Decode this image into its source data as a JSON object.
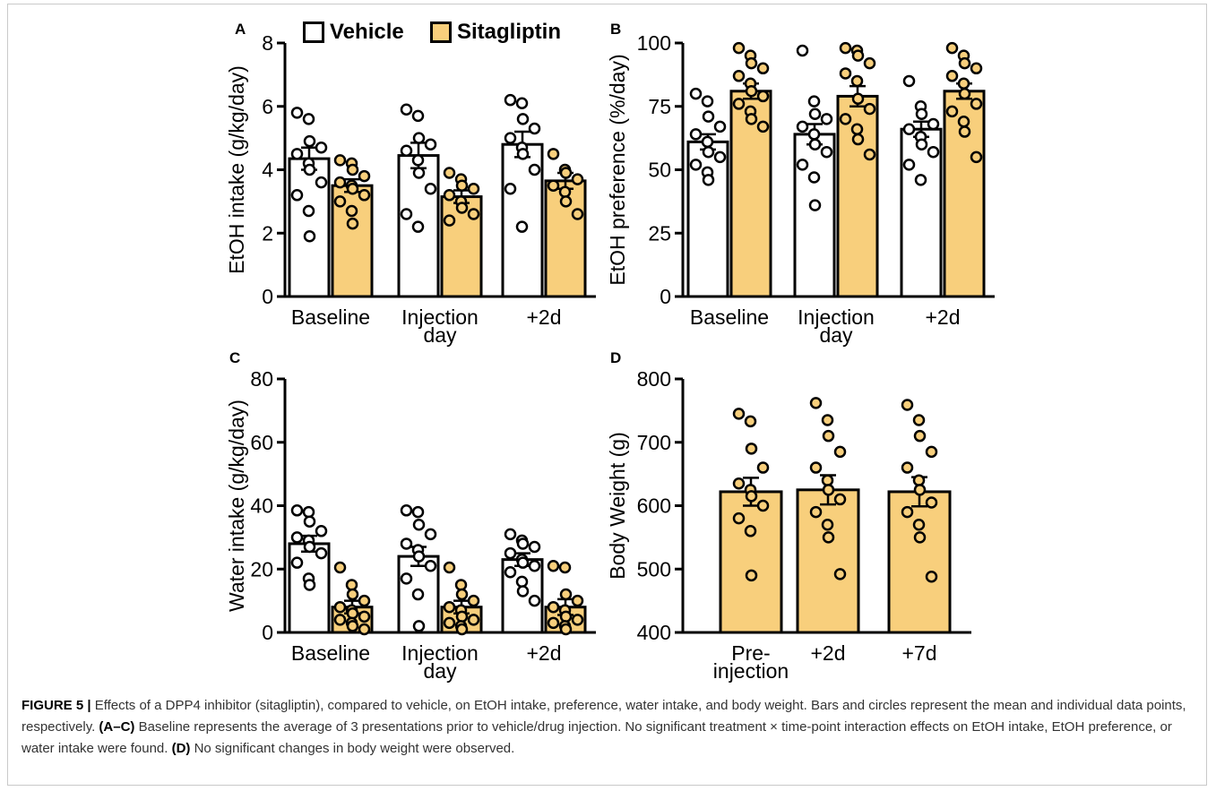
{
  "legend": [
    {
      "name": "Vehicle",
      "color": "#ffffff"
    },
    {
      "name": "Sitagliptin",
      "color": "#f8cf7c"
    }
  ],
  "caption": {
    "fig_label": "FIGURE 5 |",
    "sentence1": " Effects of a DPP4 inhibitor (sitagliptin), compared to vehicle, on EtOH intake, preference, water intake, and body weight. Bars and circles represent the mean and individual data points, respectively. ",
    "abc_label": "(A–C)",
    "sentence2": " Baseline represents the average of 3 presentations prior to vehicle/drug injection. No significant treatment × time-point interaction effects on EtOH intake, EtOH preference, or water intake were found. ",
    "d_label": "(D)",
    "sentence3": " No significant changes in body weight were observed."
  },
  "chart_data": [
    {
      "panel": "A",
      "type": "bar",
      "ylabel": "EtOH intake (g/kg/day)",
      "ylim": [
        0,
        8
      ],
      "yticks": [
        0,
        2,
        4,
        6,
        8
      ],
      "categories": [
        [
          "Baseline"
        ],
        [
          "Injection",
          "day"
        ],
        [
          "+2d"
        ]
      ],
      "series": [
        {
          "name": "Vehicle",
          "color": "#ffffff",
          "means": [
            4.35,
            4.45,
            4.8
          ],
          "sem": [
            0.35,
            0.4,
            0.4
          ],
          "points": [
            [
              5.8,
              5.6,
              4.9,
              4.7,
              4.5,
              4.2,
              4.0,
              3.6,
              3.2,
              2.7,
              1.9
            ],
            [
              5.9,
              5.7,
              5.0,
              4.8,
              4.6,
              4.3,
              3.9,
              3.4,
              2.6,
              2.2
            ],
            [
              6.2,
              6.1,
              5.6,
              5.3,
              5.0,
              4.7,
              4.5,
              4.0,
              3.4,
              2.2
            ]
          ]
        },
        {
          "name": "Sitagliptin",
          "color": "#f8cf7c",
          "means": [
            3.5,
            3.15,
            3.65
          ],
          "sem": [
            0.2,
            0.2,
            0.25
          ],
          "points": [
            [
              4.3,
              4.2,
              4.0,
              3.8,
              3.6,
              3.5,
              3.4,
              3.2,
              3.0,
              2.7,
              2.3
            ],
            [
              3.9,
              3.7,
              3.5,
              3.4,
              3.2,
              3.0,
              2.8,
              2.6,
              2.4
            ],
            [
              4.5,
              4.0,
              3.9,
              3.7,
              3.5,
              3.3,
              3.0,
              2.6
            ]
          ]
        }
      ]
    },
    {
      "panel": "B",
      "type": "bar",
      "ylabel": "EtOH preference (%/day)",
      "ylim": [
        0,
        100
      ],
      "yticks": [
        0,
        25,
        50,
        75,
        100
      ],
      "categories": [
        [
          "Baseline"
        ],
        [
          "Injection",
          "day"
        ],
        [
          "+2d"
        ]
      ],
      "series": [
        {
          "name": "Vehicle",
          "color": "#ffffff",
          "means": [
            61,
            64,
            66
          ],
          "sem": [
            3,
            4,
            3
          ],
          "points": [
            [
              80,
              77,
              71,
              67,
              64,
              61,
              57,
              55,
              52,
              49,
              46
            ],
            [
              97,
              77,
              72,
              70,
              67,
              64,
              60,
              57,
              52,
              47,
              36
            ],
            [
              85,
              75,
              72,
              68,
              66,
              63,
              60,
              57,
              52,
              46
            ]
          ]
        },
        {
          "name": "Sitagliptin",
          "color": "#f8cf7c",
          "means": [
            81,
            79,
            81
          ],
          "sem": [
            3,
            4,
            3
          ],
          "points": [
            [
              98,
              95,
              92,
              90,
              87,
              84,
              81,
              79,
              76,
              73,
              70,
              67
            ],
            [
              98,
              97,
              95,
              92,
              88,
              85,
              78,
              74,
              70,
              66,
              62,
              56
            ],
            [
              98,
              95,
              92,
              90,
              87,
              84,
              80,
              76,
              73,
              69,
              65,
              55
            ]
          ]
        }
      ]
    },
    {
      "panel": "C",
      "type": "bar",
      "ylabel": "Water intake (g/kg/day)",
      "ylim": [
        0,
        80
      ],
      "yticks": [
        0,
        20,
        40,
        60,
        80
      ],
      "categories": [
        [
          "Baseline"
        ],
        [
          "Injection",
          "day"
        ],
        [
          "+2d"
        ]
      ],
      "series": [
        {
          "name": "Vehicle",
          "color": "#ffffff",
          "means": [
            28,
            24,
            23
          ],
          "sem": [
            2.5,
            3,
            2
          ],
          "points": [
            [
              38.5,
              38,
              35,
              32,
              30,
              29,
              27,
              25,
              22,
              17,
              15
            ],
            [
              38.5,
              38,
              34,
              31,
              28,
              26,
              24,
              21,
              17,
              12,
              2
            ],
            [
              31,
              29,
              28,
              27,
              25,
              23,
              22,
              21,
              19,
              16,
              13,
              10
            ]
          ]
        },
        {
          "name": "Sitagliptin",
          "color": "#f8cf7c",
          "means": [
            8,
            8,
            8
          ],
          "sem": [
            2,
            2,
            2.5
          ],
          "points": [
            [
              20.5,
              15,
              12,
              10,
              8,
              7,
              6,
              5,
              4,
              3,
              2,
              1
            ],
            [
              20.5,
              15,
              12,
              10,
              8,
              7,
              5,
              4,
              3,
              2,
              1
            ],
            [
              21,
              20.5,
              12,
              10,
              8,
              7,
              5,
              4,
              3,
              2,
              1
            ]
          ]
        }
      ]
    },
    {
      "panel": "D",
      "type": "bar",
      "ylabel": "Body Weight (g)",
      "ylim": [
        400,
        800
      ],
      "yticks": [
        400,
        500,
        600,
        700,
        800
      ],
      "categories": [
        [
          "Pre-",
          "injection"
        ],
        [
          "+2d"
        ],
        [
          "+7d"
        ]
      ],
      "series": [
        {
          "name": "Sitagliptin",
          "color": "#f8cf7c",
          "means": [
            622,
            625,
            622
          ],
          "sem": [
            22,
            23,
            23
          ],
          "points": [
            [
              745,
              733,
              690,
              660,
              635,
              625,
              615,
              600,
              580,
              560,
              490
            ],
            [
              762,
              735,
              710,
              685,
              660,
              640,
              625,
              610,
              590,
              570,
              550,
              492
            ],
            [
              759,
              735,
              710,
              685,
              660,
              640,
              625,
              605,
              590,
              570,
              550,
              488
            ]
          ]
        }
      ]
    }
  ]
}
